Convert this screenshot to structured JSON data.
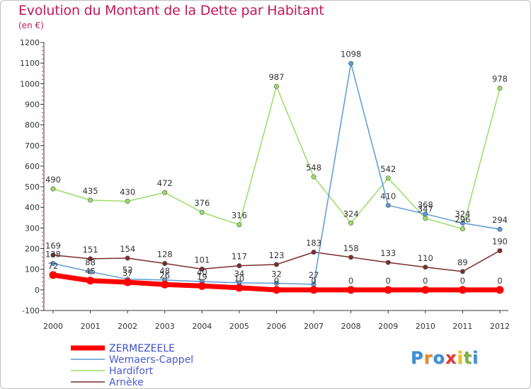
{
  "page": {
    "title": "Evolution du Montant de la Dette par Habitant",
    "subtitle": "(en €)",
    "logo_letters": [
      "P",
      "r",
      "o",
      "x",
      "i",
      "t",
      "i"
    ],
    "logo_colors": [
      "#3a8fd6",
      "#f08a24",
      "#3a8fd6",
      "#e53935",
      "#f0c419",
      "#7cb342",
      "#3a8fd6"
    ]
  },
  "chart_data": {
    "type": "line",
    "title": "Evolution du Montant de la Dette par Habitant",
    "subtitle": "(en €)",
    "xlabel": "",
    "ylabel": "",
    "categories": [
      "2000",
      "2001",
      "2002",
      "2003",
      "2004",
      "2005",
      "2006",
      "2007",
      "2008",
      "2009",
      "2010",
      "2011",
      "2012"
    ],
    "ylim": [
      -100,
      1200
    ],
    "yticks": [
      -100,
      0,
      100,
      200,
      300,
      400,
      500,
      600,
      700,
      800,
      900,
      1000,
      1100,
      1200
    ],
    "grid": false,
    "legend_position": "bottom-left",
    "series": [
      {
        "name": "ZERMEZEELE",
        "color": "#ff0000",
        "values": [
          72,
          45,
          37,
          26,
          19,
          10,
          0,
          0,
          0,
          0,
          0,
          0,
          0
        ],
        "labels": [
          "72",
          "45",
          "37",
          "26",
          "19",
          "10",
          "0",
          "0",
          "0",
          "0",
          "0",
          "0",
          "0"
        ]
      },
      {
        "name": "Wemaers-Cappel",
        "color": "#5b9bd5",
        "values": [
          128,
          88,
          52,
          48,
          40,
          34,
          32,
          27,
          1098,
          410,
          368,
          324,
          294
        ],
        "labels": [
          "128",
          "88",
          "52",
          "48",
          "40",
          "34",
          "32",
          "27",
          "1098",
          "410",
          "368",
          "324",
          "294"
        ]
      },
      {
        "name": "Hardifort",
        "color": "#99dd66",
        "values": [
          490,
          435,
          430,
          472,
          376,
          316,
          987,
          548,
          324,
          542,
          347,
          296,
          978
        ],
        "labels": [
          "490",
          "435",
          "430",
          "472",
          "376",
          "316",
          "987",
          "548",
          "324",
          "542",
          "347",
          "296",
          "978"
        ]
      },
      {
        "name": "Arnèke",
        "color": "#7b2d2d",
        "values": [
          169,
          151,
          154,
          128,
          101,
          117,
          123,
          183,
          158,
          133,
          110,
          89,
          190
        ],
        "labels": [
          "169",
          "151",
          "154",
          "128",
          "101",
          "117",
          "123",
          "183",
          "158",
          "133",
          "110",
          "89",
          "190"
        ]
      }
    ]
  }
}
